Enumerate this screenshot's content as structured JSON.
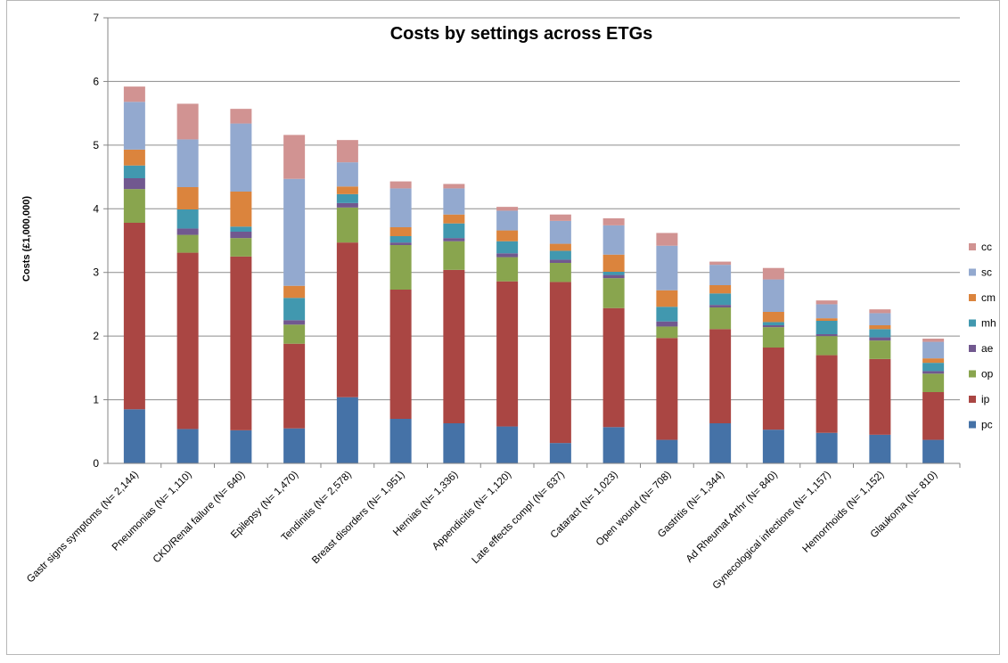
{
  "chart_data": {
    "type": "bar",
    "stacked": true,
    "title": "Costs by settings across ETGs",
    "xlabel": "",
    "ylabel": "Costs (£1,000,000)",
    "ylim": [
      0,
      7
    ],
    "yticks": [
      "0",
      "1",
      "2",
      "3",
      "4",
      "5",
      "6",
      "7"
    ],
    "grid": true,
    "legend_position": "right",
    "categories": [
      "Gastr signs symptoms  (N= 2,144)",
      "Pneumonias (N= 1,110)",
      "CKD/Renal failure (N= 640)",
      "Epilepsy (N= 1,470)",
      "Tendinitis (N= 2,578)",
      "Breast disorders (N= 1,951)",
      "Hernias (N= 1,336)",
      "Appendicitis (N= 1,120)",
      "Late effects compl (N= 637)",
      "Cataract (N= 1,023)",
      "Open wound (N= 708)",
      "Gastritis (N= 1,344)",
      "Ad Rheumat Arthr (N= 840)",
      "Gynecological infections (N= 1,157)",
      "Hemorrhoids (N= 1,152)",
      "Glaukoma (N= 810)"
    ],
    "series": [
      {
        "name": "pc",
        "color": "#4572A7",
        "values": [
          0.85,
          0.54,
          0.52,
          0.55,
          1.04,
          0.7,
          0.63,
          0.58,
          0.32,
          0.57,
          0.37,
          0.63,
          0.53,
          0.48,
          0.45,
          0.37
        ]
      },
      {
        "name": "ip",
        "color": "#AA4643",
        "values": [
          2.93,
          2.77,
          2.73,
          1.33,
          2.43,
          2.03,
          2.41,
          2.28,
          2.53,
          1.87,
          1.6,
          1.48,
          1.29,
          1.22,
          1.19,
          0.75
        ]
      },
      {
        "name": "op",
        "color": "#89A54E",
        "values": [
          0.53,
          0.28,
          0.29,
          0.3,
          0.55,
          0.7,
          0.45,
          0.38,
          0.3,
          0.47,
          0.18,
          0.34,
          0.32,
          0.3,
          0.29,
          0.29
        ]
      },
      {
        "name": "ae",
        "color": "#71588F",
        "values": [
          0.17,
          0.1,
          0.1,
          0.07,
          0.07,
          0.04,
          0.05,
          0.06,
          0.05,
          0.05,
          0.08,
          0.04,
          0.03,
          0.03,
          0.05,
          0.04
        ]
      },
      {
        "name": "mh",
        "color": "#4198AF",
        "values": [
          0.2,
          0.3,
          0.08,
          0.35,
          0.14,
          0.1,
          0.23,
          0.19,
          0.14,
          0.05,
          0.23,
          0.18,
          0.05,
          0.21,
          0.13,
          0.13
        ]
      },
      {
        "name": "cm",
        "color": "#DB843D",
        "values": [
          0.25,
          0.35,
          0.55,
          0.19,
          0.12,
          0.14,
          0.14,
          0.17,
          0.11,
          0.27,
          0.26,
          0.13,
          0.16,
          0.04,
          0.06,
          0.07
        ]
      },
      {
        "name": "sc",
        "color": "#93A9CF",
        "values": [
          0.75,
          0.75,
          1.07,
          1.68,
          0.38,
          0.61,
          0.41,
          0.31,
          0.36,
          0.46,
          0.7,
          0.32,
          0.51,
          0.22,
          0.19,
          0.26
        ]
      },
      {
        "name": "cc",
        "color": "#D19392",
        "values": [
          0.24,
          0.56,
          0.23,
          0.69,
          0.35,
          0.11,
          0.07,
          0.06,
          0.1,
          0.11,
          0.2,
          0.05,
          0.18,
          0.06,
          0.06,
          0.05
        ]
      }
    ]
  }
}
